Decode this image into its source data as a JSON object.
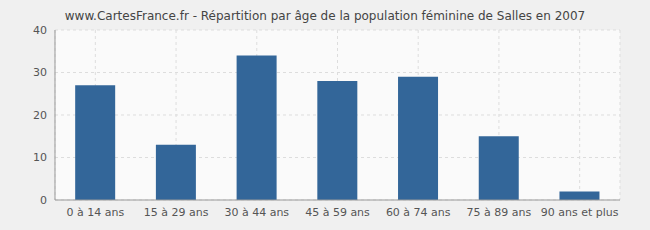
{
  "chart_data": {
    "type": "bar",
    "title": "www.CartesFrance.fr - Répartition par âge de la population féminine de Salles en 2007",
    "categories": [
      "0 à 14 ans",
      "15 à 29 ans",
      "30 à 44 ans",
      "45 à 59 ans",
      "60 à 74 ans",
      "75 à 89 ans",
      "90 ans et plus"
    ],
    "values": [
      27,
      13,
      34,
      28,
      29,
      15,
      2
    ],
    "color": "#336699",
    "ylim": [
      0,
      40
    ],
    "yticks": [
      0,
      10,
      20,
      30,
      40
    ],
    "grid": true
  }
}
